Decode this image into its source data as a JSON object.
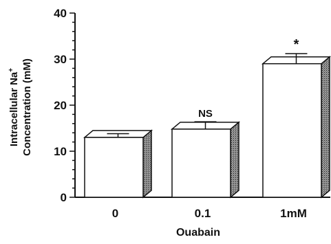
{
  "chart_data": {
    "type": "bar",
    "categories": [
      "0",
      "0.1",
      "1mM"
    ],
    "values": [
      13,
      14.8,
      29
    ],
    "error_upper": [
      13.8,
      16.4,
      31.2
    ],
    "annotations": [
      "",
      "NS",
      "*"
    ],
    "xlabel": "Ouabain",
    "ylabel_line1": "Intracellular Na",
    "ylabel_superscript": "+",
    "ylabel_line2": "Concentration (mM)",
    "ylim": [
      0,
      40
    ],
    "yticks": [
      0,
      10,
      20,
      30,
      40
    ],
    "grid": false,
    "bar_fill": "#ffffff",
    "bar_side_fill": "#808080",
    "ink": "#111111"
  }
}
